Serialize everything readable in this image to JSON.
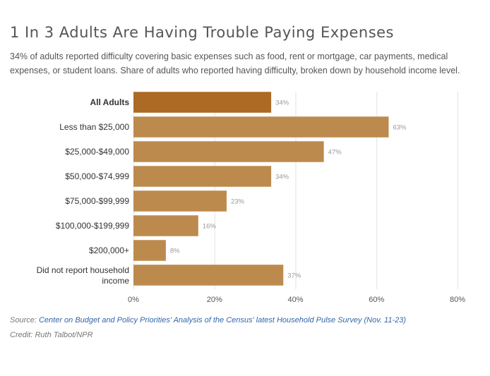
{
  "header": {
    "title": "1 In 3 Adults Are Having Trouble Paying Expenses",
    "subtitle": "34% of adults reported difficulty covering basic expenses such as food, rent or mortgage, car payments, medical expenses, or student loans. Share of adults who reported having difficulty, broken down by household income level."
  },
  "chart_data": {
    "type": "bar",
    "orientation": "horizontal",
    "categories": [
      "All Adults",
      "Less than $25,000",
      "$25,000-$49,000",
      "$50,000-$74,999",
      "$75,000-$99,999",
      "$100,000-$199,999",
      "$200,000+",
      "Did not report household income"
    ],
    "values": [
      34,
      63,
      47,
      34,
      23,
      16,
      8,
      37
    ],
    "value_labels": [
      "34%",
      "63%",
      "47%",
      "34%",
      "23%",
      "16%",
      "8%",
      "37%"
    ],
    "highlight_index": 0,
    "xlim": [
      0,
      80
    ],
    "xticks": [
      0,
      20,
      40,
      60,
      80
    ],
    "xtick_labels": [
      "0%",
      "20%",
      "40%",
      "60%",
      "80%"
    ],
    "grid": "vertical",
    "colors": {
      "highlight": "#ac6a25",
      "bar": "#bd8a4e",
      "grid": "#e2e2e2",
      "label": "#999999"
    }
  },
  "footer": {
    "source_prefix": "Source: ",
    "source_link": "Center on Budget and Policy Priorities' Analysis of the Census' latest Household Pulse Survey (Nov. 11-23)",
    "credit": "Credit: Ruth Talbot/NPR"
  }
}
